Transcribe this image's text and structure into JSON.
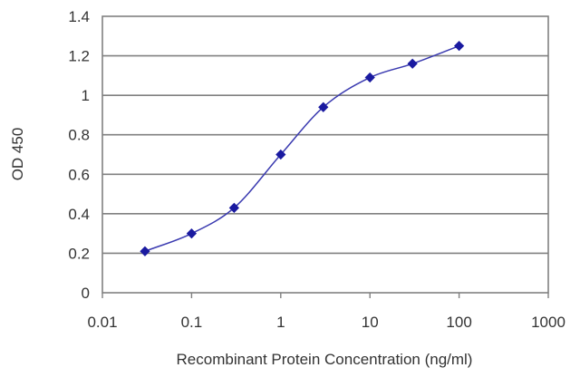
{
  "chart_data": {
    "type": "line",
    "title": "",
    "xlabel": "Recombinant Protein Concentration (ng/ml)",
    "ylabel": "OD 450",
    "xscale": "log",
    "xlim": [
      0.01,
      1000
    ],
    "ylim": [
      0,
      1.4
    ],
    "xticks": [
      "0.01",
      "0.1",
      "1",
      "10",
      "100",
      "1000"
    ],
    "yticks": [
      "0",
      "0.2",
      "0.4",
      "0.6",
      "0.8",
      "1",
      "1.2",
      "1.4"
    ],
    "grid": "horizontal",
    "legend": "none",
    "series": [
      {
        "color": "#3a3ab0",
        "marker": "diamond",
        "x": [
          0.03,
          0.1,
          0.3,
          1,
          3,
          10,
          30,
          100
        ],
        "y": [
          0.21,
          0.3,
          0.43,
          0.7,
          0.94,
          1.09,
          1.16,
          1.25
        ]
      }
    ]
  }
}
